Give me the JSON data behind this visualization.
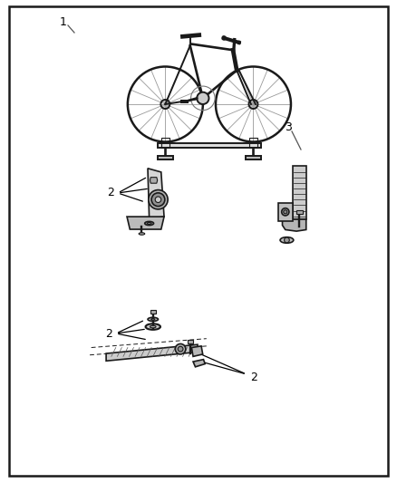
{
  "background_color": "#ffffff",
  "border_color": "#000000",
  "text_color": "#000000",
  "line_color": "#1a1a1a",
  "gray_fill": "#c8c8c8",
  "gray_dark": "#888888",
  "gray_med": "#aaaaaa",
  "label_1": "1",
  "label_2": "2",
  "label_3": "3",
  "fig_width": 4.38,
  "fig_height": 5.33,
  "dpi": 100
}
